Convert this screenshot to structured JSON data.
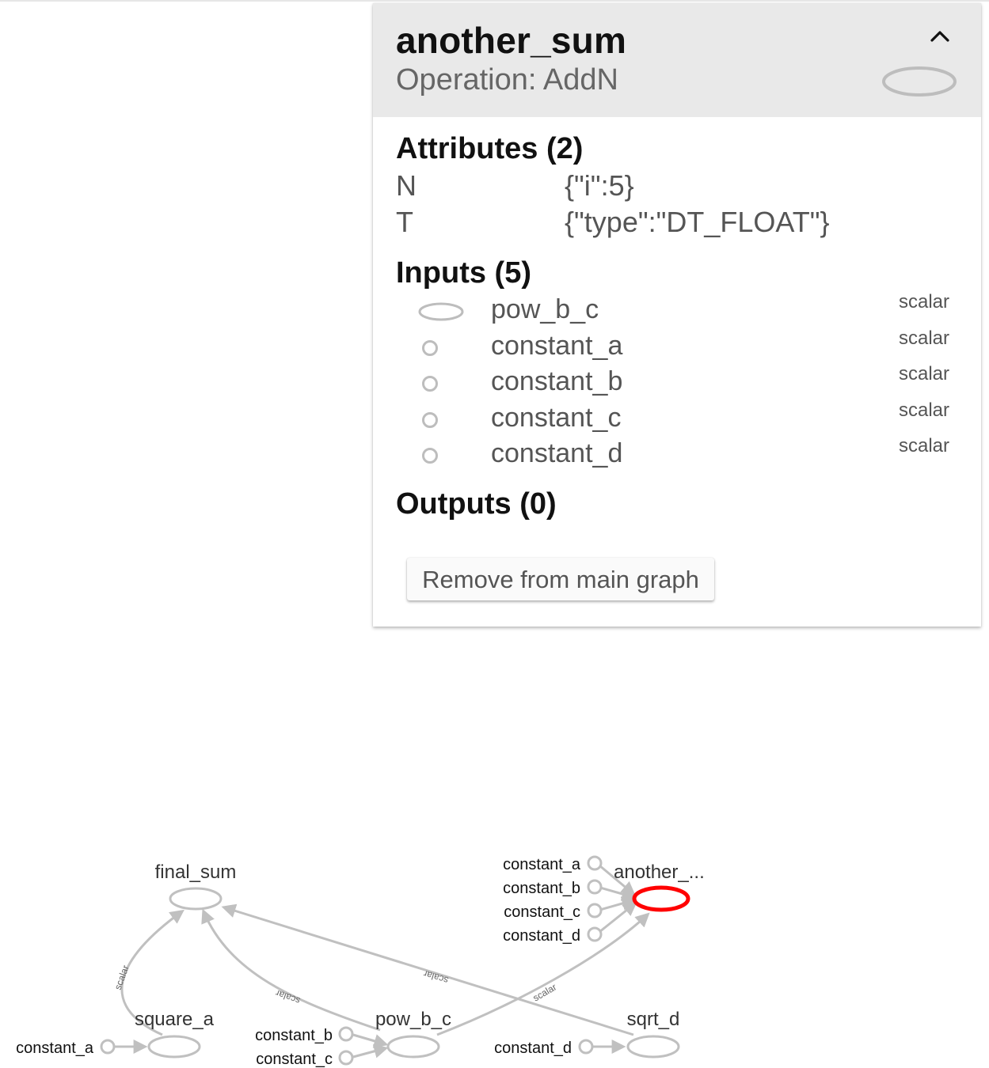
{
  "info_card": {
    "title": "another_sum",
    "operation": "Operation: AddN",
    "attributes_heading": "Attributes (2)",
    "attributes": [
      {
        "key": "N",
        "value": "{\"i\":5}"
      },
      {
        "key": "T",
        "value": "{\"type\":\"DT_FLOAT\"}"
      }
    ],
    "inputs_heading": "Inputs (5)",
    "inputs": [
      {
        "name": "pow_b_c",
        "type": "scalar",
        "icon": "op-node-ellipse-icon"
      },
      {
        "name": "constant_a",
        "type": "scalar",
        "icon": "constant-node-circle-icon"
      },
      {
        "name": "constant_b",
        "type": "scalar",
        "icon": "constant-node-circle-icon"
      },
      {
        "name": "constant_c",
        "type": "scalar",
        "icon": "constant-node-circle-icon"
      },
      {
        "name": "constant_d",
        "type": "scalar",
        "icon": "constant-node-circle-icon"
      }
    ],
    "outputs_heading": "Outputs (0)",
    "remove_button_label": "Remove from main graph"
  },
  "graph": {
    "nodes": {
      "final_sum": "final_sum",
      "another_sum": "another_...",
      "square_a": "square_a",
      "pow_b_c": "pow_b_c",
      "sqrt_d": "sqrt_d"
    },
    "constants": {
      "another_a": "constant_a",
      "another_b": "constant_b",
      "another_c": "constant_c",
      "another_d": "constant_d",
      "square_a": "constant_a",
      "pow_b": "constant_b",
      "pow_c": "constant_c",
      "sqrt_d": "constant_d"
    },
    "edge_label": "scalar",
    "selected_color": "#ff0000",
    "edge_color": "#c0c0c0"
  }
}
